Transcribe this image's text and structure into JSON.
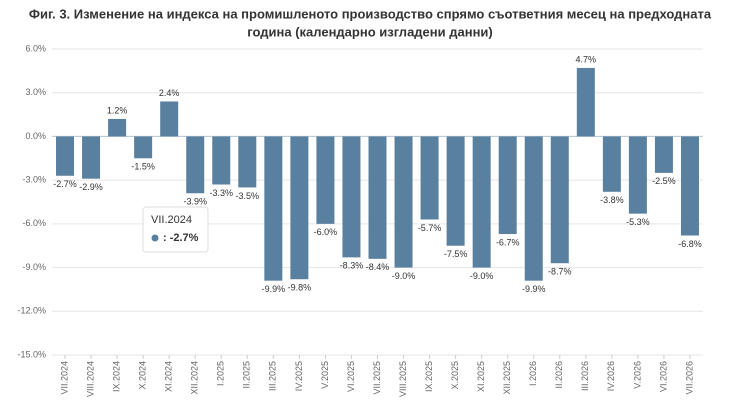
{
  "chart_data": {
    "type": "bar",
    "title": [
      "Фиг. 3. Изменение на индекса на промишленото производство спрямо съответния месец на предходната",
      "година (календарно изгладени данни)"
    ],
    "categories": [
      "VII.2024",
      "VIII.2024",
      "IX.2024",
      "X.2024",
      "XI.2024",
      "XII.2024",
      "I.2025",
      "II.2025",
      "III.2025",
      "IV.2025",
      "V.2025",
      "VI.2025",
      "VII.2025",
      "VIII.2025",
      "IX.2025",
      "X.2025",
      "XI.2025",
      "XII.2025",
      "I.2026",
      "II.2026",
      "III.2026",
      "IV.2026",
      "V.2026",
      "VI.2026",
      "VII.2026"
    ],
    "values": [
      -2.7,
      -2.9,
      1.2,
      -1.5,
      2.4,
      -3.9,
      -3.3,
      -3.5,
      -9.9,
      -9.8,
      -6.0,
      -8.3,
      -8.4,
      -9.0,
      -5.7,
      -7.5,
      -9.0,
      -6.7,
      -9.9,
      -8.7,
      4.7,
      -3.8,
      -5.3,
      -2.5,
      -6.8
    ],
    "value_labels": [
      "-2.7%",
      "-2.9%",
      "1.2%",
      "-1.5%",
      "2.4%",
      "-3.9%",
      "-3.3%",
      "-3.5%",
      "-9.9%",
      "-9.8%",
      "-6.0%",
      "-8.3%",
      "-8.4%",
      "-9.0%",
      "-5.7%",
      "-7.5%",
      "-9.0%",
      "-6.7%",
      "-9.9%",
      "-8.7%",
      "4.7%",
      "-3.8%",
      "-5.3%",
      "-2.5%",
      "-6.8%"
    ],
    "color": "#5a80a0",
    "ylim": [
      -15,
      6
    ],
    "yticks": [
      {
        "value": 6,
        "label": "6.0%"
      },
      {
        "value": 3,
        "label": "3.0%"
      },
      {
        "value": 0,
        "label": "0.0%"
      },
      {
        "value": -3,
        "label": "-3.0%"
      },
      {
        "value": -6,
        "label": "-6.0%"
      },
      {
        "value": -9,
        "label": "-9.0%"
      },
      {
        "value": -12,
        "label": "-12.0%"
      },
      {
        "value": -15,
        "label": "-15.0%"
      }
    ],
    "grid": true,
    "tooltip": {
      "title": "VII.2024",
      "value_label": ": -2.7%"
    }
  }
}
